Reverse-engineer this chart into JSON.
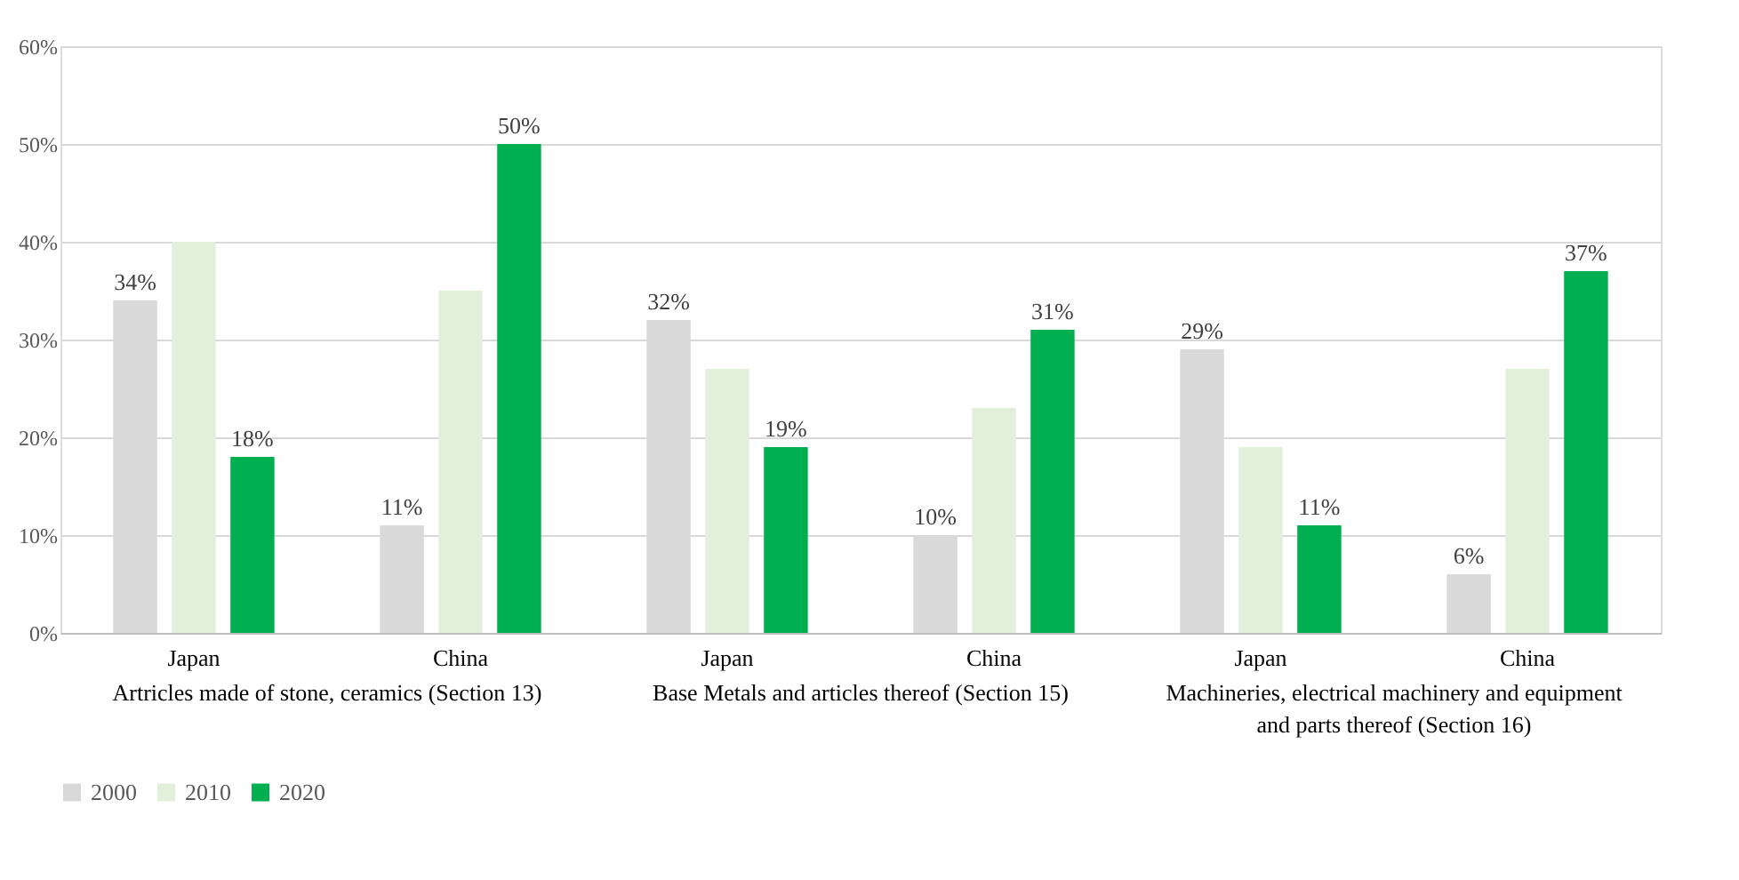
{
  "chart_data": {
    "type": "bar",
    "categories": [
      "Japan",
      "China",
      "Japan",
      "China",
      "Japan",
      "China"
    ],
    "series": [
      {
        "name": "2000",
        "color": "#d9d9d9",
        "values": [
          34,
          11,
          32,
          10,
          29,
          6
        ],
        "value_labels": [
          "34%",
          "11%",
          "32%",
          "10%",
          "29%",
          "6%"
        ]
      },
      {
        "name": "2010",
        "color": "#e2efda",
        "values": [
          40,
          35,
          27,
          23,
          19,
          27
        ]
      },
      {
        "name": "2020",
        "color": "#00b050",
        "values": [
          18,
          50,
          19,
          31,
          11,
          37
        ],
        "value_labels": [
          "18%",
          "50%",
          "19%",
          "31%",
          "11%",
          "37%"
        ]
      }
    ],
    "ylim": [
      0,
      60
    ],
    "yticks": [
      {
        "value": 0,
        "label": "0%"
      },
      {
        "value": 10,
        "label": "10%"
      },
      {
        "value": 20,
        "label": "20%"
      },
      {
        "value": 30,
        "label": "30%"
      },
      {
        "value": 40,
        "label": "40%"
      },
      {
        "value": 50,
        "label": "50%"
      },
      {
        "value": 60,
        "label": "60%"
      }
    ],
    "annotations": [
      "Artricles made of stone, ceramics (Section 13)",
      "Base Metals and articles thereof (Section 15)",
      "Machineries, electrical machinery and equipment\nand parts thereof (Section 16)"
    ],
    "grid": "y",
    "legend": "bottom"
  }
}
